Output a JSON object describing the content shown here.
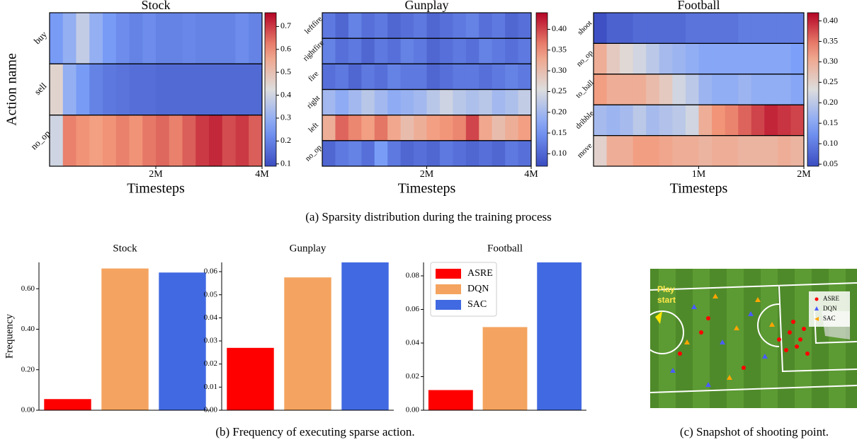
{
  "chart_data": [
    {
      "type": "heatmap",
      "title": "Stock",
      "xlabel": "Timesteps",
      "ylabel": "Action name",
      "rows": [
        "buy",
        "sell",
        "no_op"
      ],
      "values": [
        [
          0.25,
          0.3,
          0.38,
          0.3,
          0.25,
          0.22,
          0.2,
          0.22,
          0.2,
          0.2,
          0.21,
          0.2,
          0.2,
          0.2,
          0.22,
          0.2
        ],
        [
          0.45,
          0.3,
          0.25,
          0.2,
          0.18,
          0.17,
          0.16,
          0.16,
          0.15,
          0.15,
          0.15,
          0.15,
          0.15,
          0.15,
          0.15,
          0.15
        ],
        [
          0.4,
          0.62,
          0.6,
          0.58,
          0.6,
          0.62,
          0.6,
          0.63,
          0.65,
          0.62,
          0.66,
          0.7,
          0.72,
          0.68,
          0.7,
          0.66
        ]
      ],
      "xlim": [
        0,
        4000000
      ],
      "xticks": [
        {
          "value": 2000000,
          "label": "2M"
        },
        {
          "value": 4000000,
          "label": "4M"
        }
      ],
      "clim": [
        0.09,
        0.76
      ],
      "cticks": [
        0.1,
        0.2,
        0.3,
        0.4,
        0.5,
        0.6,
        0.7
      ],
      "colormap": "coolwarm"
    },
    {
      "type": "heatmap",
      "title": "Gunplay",
      "xlabel": "Timesteps",
      "rows": [
        "leftfire",
        "rightfire",
        "fire",
        "right",
        "left",
        "no_op"
      ],
      "values": [
        [
          0.12,
          0.1,
          0.13,
          0.11,
          0.12,
          0.1,
          0.11,
          0.12,
          0.1,
          0.11,
          0.12,
          0.13,
          0.11,
          0.12,
          0.1,
          0.11
        ],
        [
          0.13,
          0.11,
          0.12,
          0.1,
          0.12,
          0.11,
          0.13,
          0.12,
          0.1,
          0.11,
          0.12,
          0.11,
          0.13,
          0.12,
          0.11,
          0.12
        ],
        [
          0.11,
          0.12,
          0.1,
          0.12,
          0.11,
          0.13,
          0.12,
          0.12,
          0.1,
          0.11,
          0.12,
          0.12,
          0.11,
          0.12,
          0.13,
          0.12
        ],
        [
          0.2,
          0.18,
          0.2,
          0.22,
          0.2,
          0.18,
          0.19,
          0.2,
          0.22,
          0.24,
          0.22,
          0.21,
          0.22,
          0.2,
          0.21,
          0.23
        ],
        [
          0.32,
          0.38,
          0.36,
          0.34,
          0.37,
          0.33,
          0.3,
          0.32,
          0.34,
          0.35,
          0.36,
          0.4,
          0.33,
          0.3,
          0.32,
          0.34
        ],
        [
          0.1,
          0.12,
          0.13,
          0.11,
          0.16,
          0.12,
          0.1,
          0.11,
          0.1,
          0.12,
          0.11,
          0.1,
          0.11,
          0.1,
          0.12,
          0.11
        ]
      ],
      "xlim": [
        0,
        4000000
      ],
      "xticks": [
        {
          "value": 2000000,
          "label": "2M"
        },
        {
          "value": 4000000,
          "label": "4M"
        }
      ],
      "clim": [
        0.07,
        0.44
      ],
      "cticks": [
        {
          "value": 0.1,
          "label": "0.10"
        },
        0.15,
        {
          "value": 0.2,
          "label": "0.20"
        },
        0.25,
        {
          "value": 0.3,
          "label": "0.30"
        },
        0.35,
        {
          "value": 0.4,
          "label": "0.40"
        }
      ],
      "colormap": "coolwarm"
    },
    {
      "type": "heatmap",
      "title": "Football",
      "xlabel": "Timesteps",
      "rows": [
        "shoot",
        "no_op",
        "to_ball",
        "dribble",
        "move"
      ],
      "values": [
        [
          0.05,
          0.07,
          0.07,
          0.08,
          0.08,
          0.08,
          0.08,
          0.09,
          0.09,
          0.09,
          0.09,
          0.1,
          0.1,
          0.1,
          0.1,
          0.1
        ],
        [
          0.3,
          0.26,
          0.24,
          0.22,
          0.2,
          0.18,
          0.17,
          0.16,
          0.15,
          0.15,
          0.15,
          0.15,
          0.15,
          0.15,
          0.15,
          0.14
        ],
        [
          0.32,
          0.3,
          0.3,
          0.3,
          0.28,
          0.26,
          0.22,
          0.2,
          0.17,
          0.16,
          0.16,
          0.17,
          0.16,
          0.16,
          0.16,
          0.15
        ],
        [
          0.18,
          0.17,
          0.18,
          0.2,
          0.18,
          0.19,
          0.2,
          0.22,
          0.3,
          0.33,
          0.34,
          0.36,
          0.38,
          0.4,
          0.39,
          0.38
        ],
        [
          0.25,
          0.3,
          0.3,
          0.32,
          0.32,
          0.31,
          0.3,
          0.3,
          0.29,
          0.3,
          0.3,
          0.29,
          0.29,
          0.29,
          0.3,
          0.29
        ]
      ],
      "xlim": [
        0,
        2000000
      ],
      "xticks": [
        {
          "value": 1000000,
          "label": "1M"
        },
        {
          "value": 2000000,
          "label": "2M"
        }
      ],
      "clim": [
        0.045,
        0.42
      ],
      "cticks": [
        0.05,
        {
          "value": 0.1,
          "label": "0.10"
        },
        0.15,
        {
          "value": 0.2,
          "label": "0.20"
        },
        0.25,
        {
          "value": 0.3,
          "label": "0.30"
        },
        0.35,
        {
          "value": 0.4,
          "label": "0.40"
        }
      ],
      "colormap": "coolwarm"
    },
    {
      "type": "bar",
      "title": "Stock",
      "ylabel": "Frequency",
      "series": [
        {
          "color": "#ff0000",
          "values": [
            0.055
          ]
        },
        {
          "color": "#f4a460",
          "values": [
            0.7
          ]
        },
        {
          "color": "#4169e1",
          "values": [
            0.68
          ]
        }
      ],
      "ylim": [
        0,
        0.73
      ],
      "yticks": [
        {
          "value": 0,
          "label": "0.00"
        },
        {
          "value": 0.2,
          "label": "0.20"
        },
        {
          "value": 0.4,
          "label": "0.40"
        },
        {
          "value": 0.6,
          "label": "0.60"
        }
      ]
    },
    {
      "type": "bar",
      "title": "Gunplay",
      "series": [
        {
          "color": "#ff0000",
          "values": [
            0.027
          ]
        },
        {
          "color": "#f4a460",
          "values": [
            0.0575
          ]
        },
        {
          "color": "#4169e1",
          "values": [
            0.064
          ]
        }
      ],
      "ylim": [
        0,
        0.064
      ],
      "yticks": [
        {
          "value": 0,
          "label": "0.00"
        },
        0.01,
        0.02,
        0.03,
        0.04,
        0.05,
        0.06
      ]
    },
    {
      "type": "bar",
      "title": "Football",
      "series": [
        {
          "name": "ASRE",
          "color": "#ff0000",
          "values": [
            0.012
          ]
        },
        {
          "name": "DQN",
          "color": "#f4a460",
          "values": [
            0.0495
          ]
        },
        {
          "name": "SAC",
          "color": "#4169e1",
          "values": [
            0.088
          ]
        }
      ],
      "ylim": [
        0,
        0.088
      ],
      "yticks": [
        {
          "value": 0,
          "label": "0.00"
        },
        0.02,
        0.04,
        0.06,
        0.08
      ],
      "legend": "upper left"
    }
  ],
  "captions": [
    "(a) Sparsity distribution during the training process",
    "(b) Frequency of executing sparse action.",
    "(c) Snapshot of shooting point."
  ],
  "snapshot": {
    "play": [
      "Play",
      "start"
    ],
    "legend": [
      "ASRE",
      "DQN",
      "SAC"
    ]
  }
}
